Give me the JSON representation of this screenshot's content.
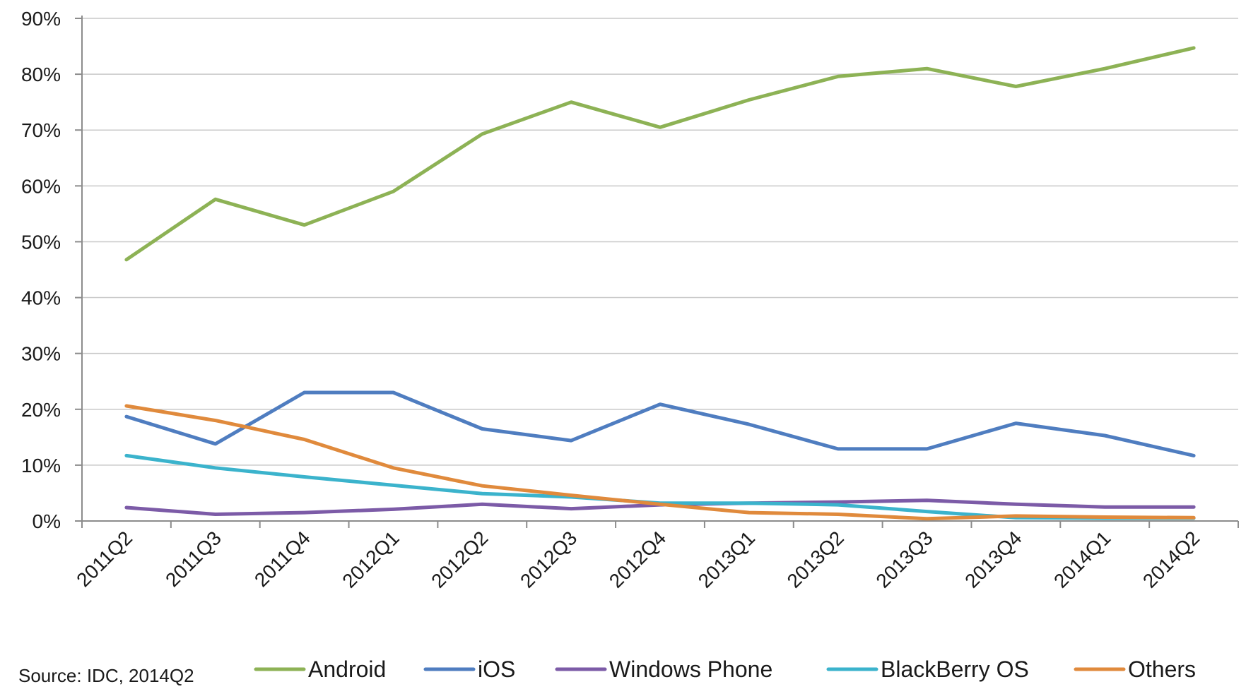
{
  "source": "Source: IDC, 2014Q2",
  "chart_data": {
    "type": "line",
    "title": "",
    "xlabel": "",
    "ylabel": "",
    "categories": [
      "2011Q2",
      "2011Q3",
      "2011Q4",
      "2012Q1",
      "2012Q2",
      "2012Q3",
      "2012Q4",
      "2013Q1",
      "2013Q2",
      "2013Q3",
      "2013Q4",
      "2014Q1",
      "2014Q2"
    ],
    "ylim": [
      0,
      90
    ],
    "yticks": [
      0,
      10,
      20,
      30,
      40,
      50,
      60,
      70,
      80,
      90
    ],
    "ytick_labels": [
      "0%",
      "10%",
      "20%",
      "30%",
      "40%",
      "50%",
      "60%",
      "70%",
      "80%",
      "90%"
    ],
    "grid": true,
    "legend_position": "bottom",
    "series": [
      {
        "name": "Android",
        "color": "#8db255",
        "values": [
          46.8,
          57.6,
          53.0,
          59.0,
          69.3,
          75.0,
          70.5,
          75.4,
          79.6,
          81.0,
          77.8,
          81.0,
          84.7
        ]
      },
      {
        "name": "iOS",
        "color": "#4f7dc0",
        "values": [
          18.7,
          13.8,
          23.0,
          23.0,
          16.5,
          14.4,
          20.9,
          17.3,
          12.9,
          12.9,
          17.5,
          15.3,
          11.7
        ]
      },
      {
        "name": "Windows Phone",
        "color": "#7c5ba7",
        "values": [
          2.4,
          1.2,
          1.5,
          2.1,
          3.0,
          2.2,
          2.9,
          3.2,
          3.4,
          3.7,
          3.0,
          2.5,
          2.5
        ]
      },
      {
        "name": "BlackBerry OS",
        "color": "#3bb3cc",
        "values": [
          11.7,
          9.5,
          7.9,
          6.4,
          4.9,
          4.3,
          3.2,
          3.2,
          2.9,
          1.7,
          0.6,
          0.5,
          0.5
        ]
      },
      {
        "name": "Others",
        "color": "#e08a3c",
        "values": [
          20.6,
          18.0,
          14.6,
          9.5,
          6.3,
          4.6,
          3.0,
          1.5,
          1.2,
          0.4,
          0.9,
          0.7,
          0.6
        ]
      }
    ]
  }
}
